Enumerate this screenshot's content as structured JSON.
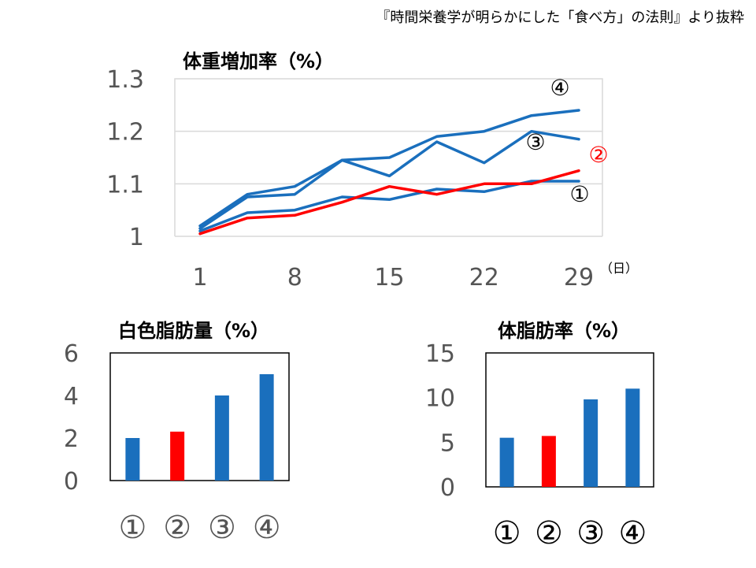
{
  "source": "『時間栄養学が明らかにした「食べ方」の法則』より抜粋",
  "colors": {
    "blue": "#1a6fbd",
    "red": "#ff0000",
    "grid": "#d9d9d9",
    "axis_text": "#555555"
  },
  "chart_data": [
    {
      "id": "weight",
      "type": "line",
      "title": "体重増加率（%）",
      "x_unit": "（日）",
      "x": [
        1,
        4.5,
        8,
        11.5,
        15,
        18.5,
        22,
        25.5,
        29
      ],
      "x_ticks": [
        1,
        8,
        15,
        22,
        29
      ],
      "ylim": [
        1,
        1.3
      ],
      "y_ticks": [
        1,
        1.1,
        1.2,
        1.3
      ],
      "y_tick_labels": [
        "1",
        "1.1",
        "1.2",
        "1.3"
      ],
      "grid": true,
      "series": [
        {
          "name": "①",
          "color": "#1a6fbd",
          "values": [
            1.01,
            1.045,
            1.05,
            1.075,
            1.07,
            1.09,
            1.085,
            1.105,
            1.105
          ]
        },
        {
          "name": "②",
          "color": "#ff0000",
          "values": [
            1.005,
            1.035,
            1.04,
            1.065,
            1.095,
            1.08,
            1.1,
            1.1,
            1.125
          ]
        },
        {
          "name": "③",
          "color": "#1a6fbd",
          "values": [
            1.015,
            1.075,
            1.08,
            1.145,
            1.115,
            1.18,
            1.14,
            1.2,
            1.185
          ]
        },
        {
          "name": "④",
          "color": "#1a6fbd",
          "values": [
            1.02,
            1.08,
            1.095,
            1.145,
            1.15,
            1.19,
            1.2,
            1.23,
            1.24
          ]
        }
      ]
    },
    {
      "id": "white_fat",
      "type": "bar",
      "title": "白色脂肪量（%）",
      "categories": [
        "①",
        "②",
        "③",
        "④"
      ],
      "values": [
        2,
        2.3,
        4,
        5
      ],
      "bar_colors": [
        "#1a6fbd",
        "#ff0000",
        "#1a6fbd",
        "#1a6fbd"
      ],
      "ylim": [
        0,
        6
      ],
      "y_ticks": [
        0,
        2,
        4,
        6
      ],
      "grid": false
    },
    {
      "id": "body_fat",
      "type": "bar",
      "title": "体脂肪率（%）",
      "categories": [
        "①",
        "②",
        "③",
        "④"
      ],
      "values": [
        5.5,
        5.7,
        9.8,
        11
      ],
      "bar_colors": [
        "#1a6fbd",
        "#ff0000",
        "#1a6fbd",
        "#1a6fbd"
      ],
      "ylim": [
        0,
        15
      ],
      "y_ticks": [
        0,
        5,
        10,
        15
      ],
      "grid": false
    }
  ]
}
